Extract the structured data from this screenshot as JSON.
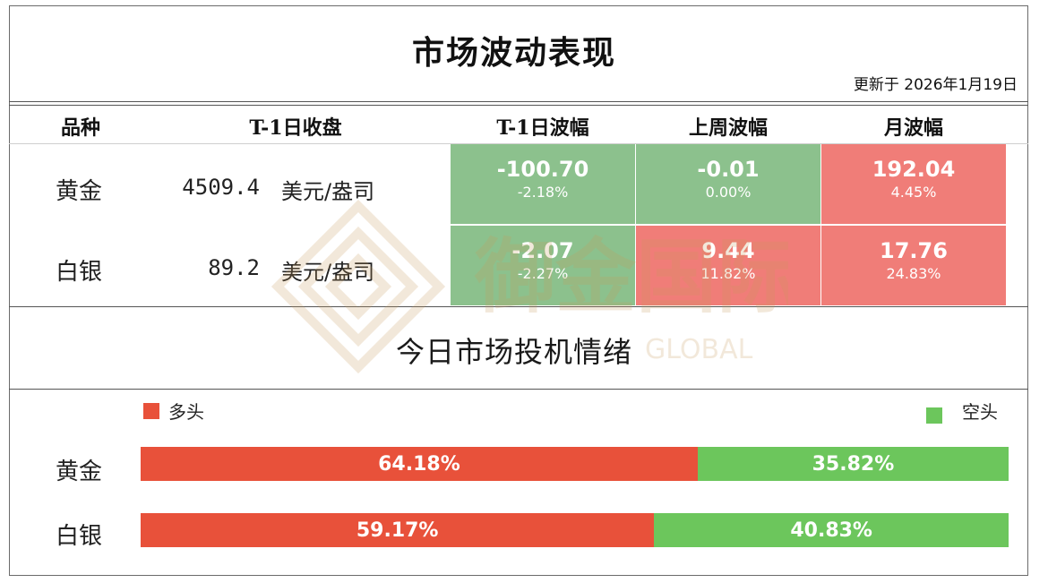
{
  "header": {
    "title": "市场波动表现",
    "update": "更新于 2026年1月19日"
  },
  "table": {
    "columns": [
      "品种",
      "T-1日收盘",
      "T-1日波幅",
      "上周波幅",
      "月波幅"
    ],
    "rows": [
      {
        "name": "黄金",
        "close": "4509.4",
        "unit": "美元/盎司",
        "t1": {
          "value": "-100.70",
          "pct": "-2.18%",
          "color": "#8cc18d"
        },
        "week": {
          "value": "-0.01",
          "pct": "0.00%",
          "color": "#8cc18d"
        },
        "month": {
          "value": "192.04",
          "pct": "4.45%",
          "color": "#f07d78"
        }
      },
      {
        "name": "白银",
        "close": "89.2",
        "unit": "美元/盎司",
        "t1": {
          "value": "-2.07",
          "pct": "-2.27%",
          "color": "#8cc18d"
        },
        "week": {
          "value": "9.44",
          "pct": "11.82%",
          "color": "#f07d78"
        },
        "month": {
          "value": "17.76",
          "pct": "24.83%",
          "color": "#f07d78"
        }
      }
    ]
  },
  "sentiment": {
    "title": "今日市场投机情绪",
    "legend_long": "多头",
    "legend_short": "空头",
    "long_color": "#e8513a",
    "short_color": "#6cc65c"
  },
  "chart_data": {
    "type": "bar",
    "stacked": true,
    "orientation": "horizontal",
    "categories": [
      "黄金",
      "白银"
    ],
    "series": [
      {
        "name": "多头",
        "values": [
          64.18,
          59.17
        ],
        "labels": [
          "64.18%",
          "59.17%"
        ],
        "color": "#e8513a"
      },
      {
        "name": "空头",
        "values": [
          35.82,
          40.83
        ],
        "labels": [
          "35.82%",
          "40.83%"
        ],
        "color": "#6cc65c"
      }
    ],
    "title": "今日市场投机情绪",
    "xlim": [
      0,
      100
    ],
    "legend": "top"
  },
  "watermark": {
    "text": "御金国际",
    "subtext": "GLOBAL",
    "color": "#c89a5b",
    "icon": "brand-logo-icon"
  }
}
